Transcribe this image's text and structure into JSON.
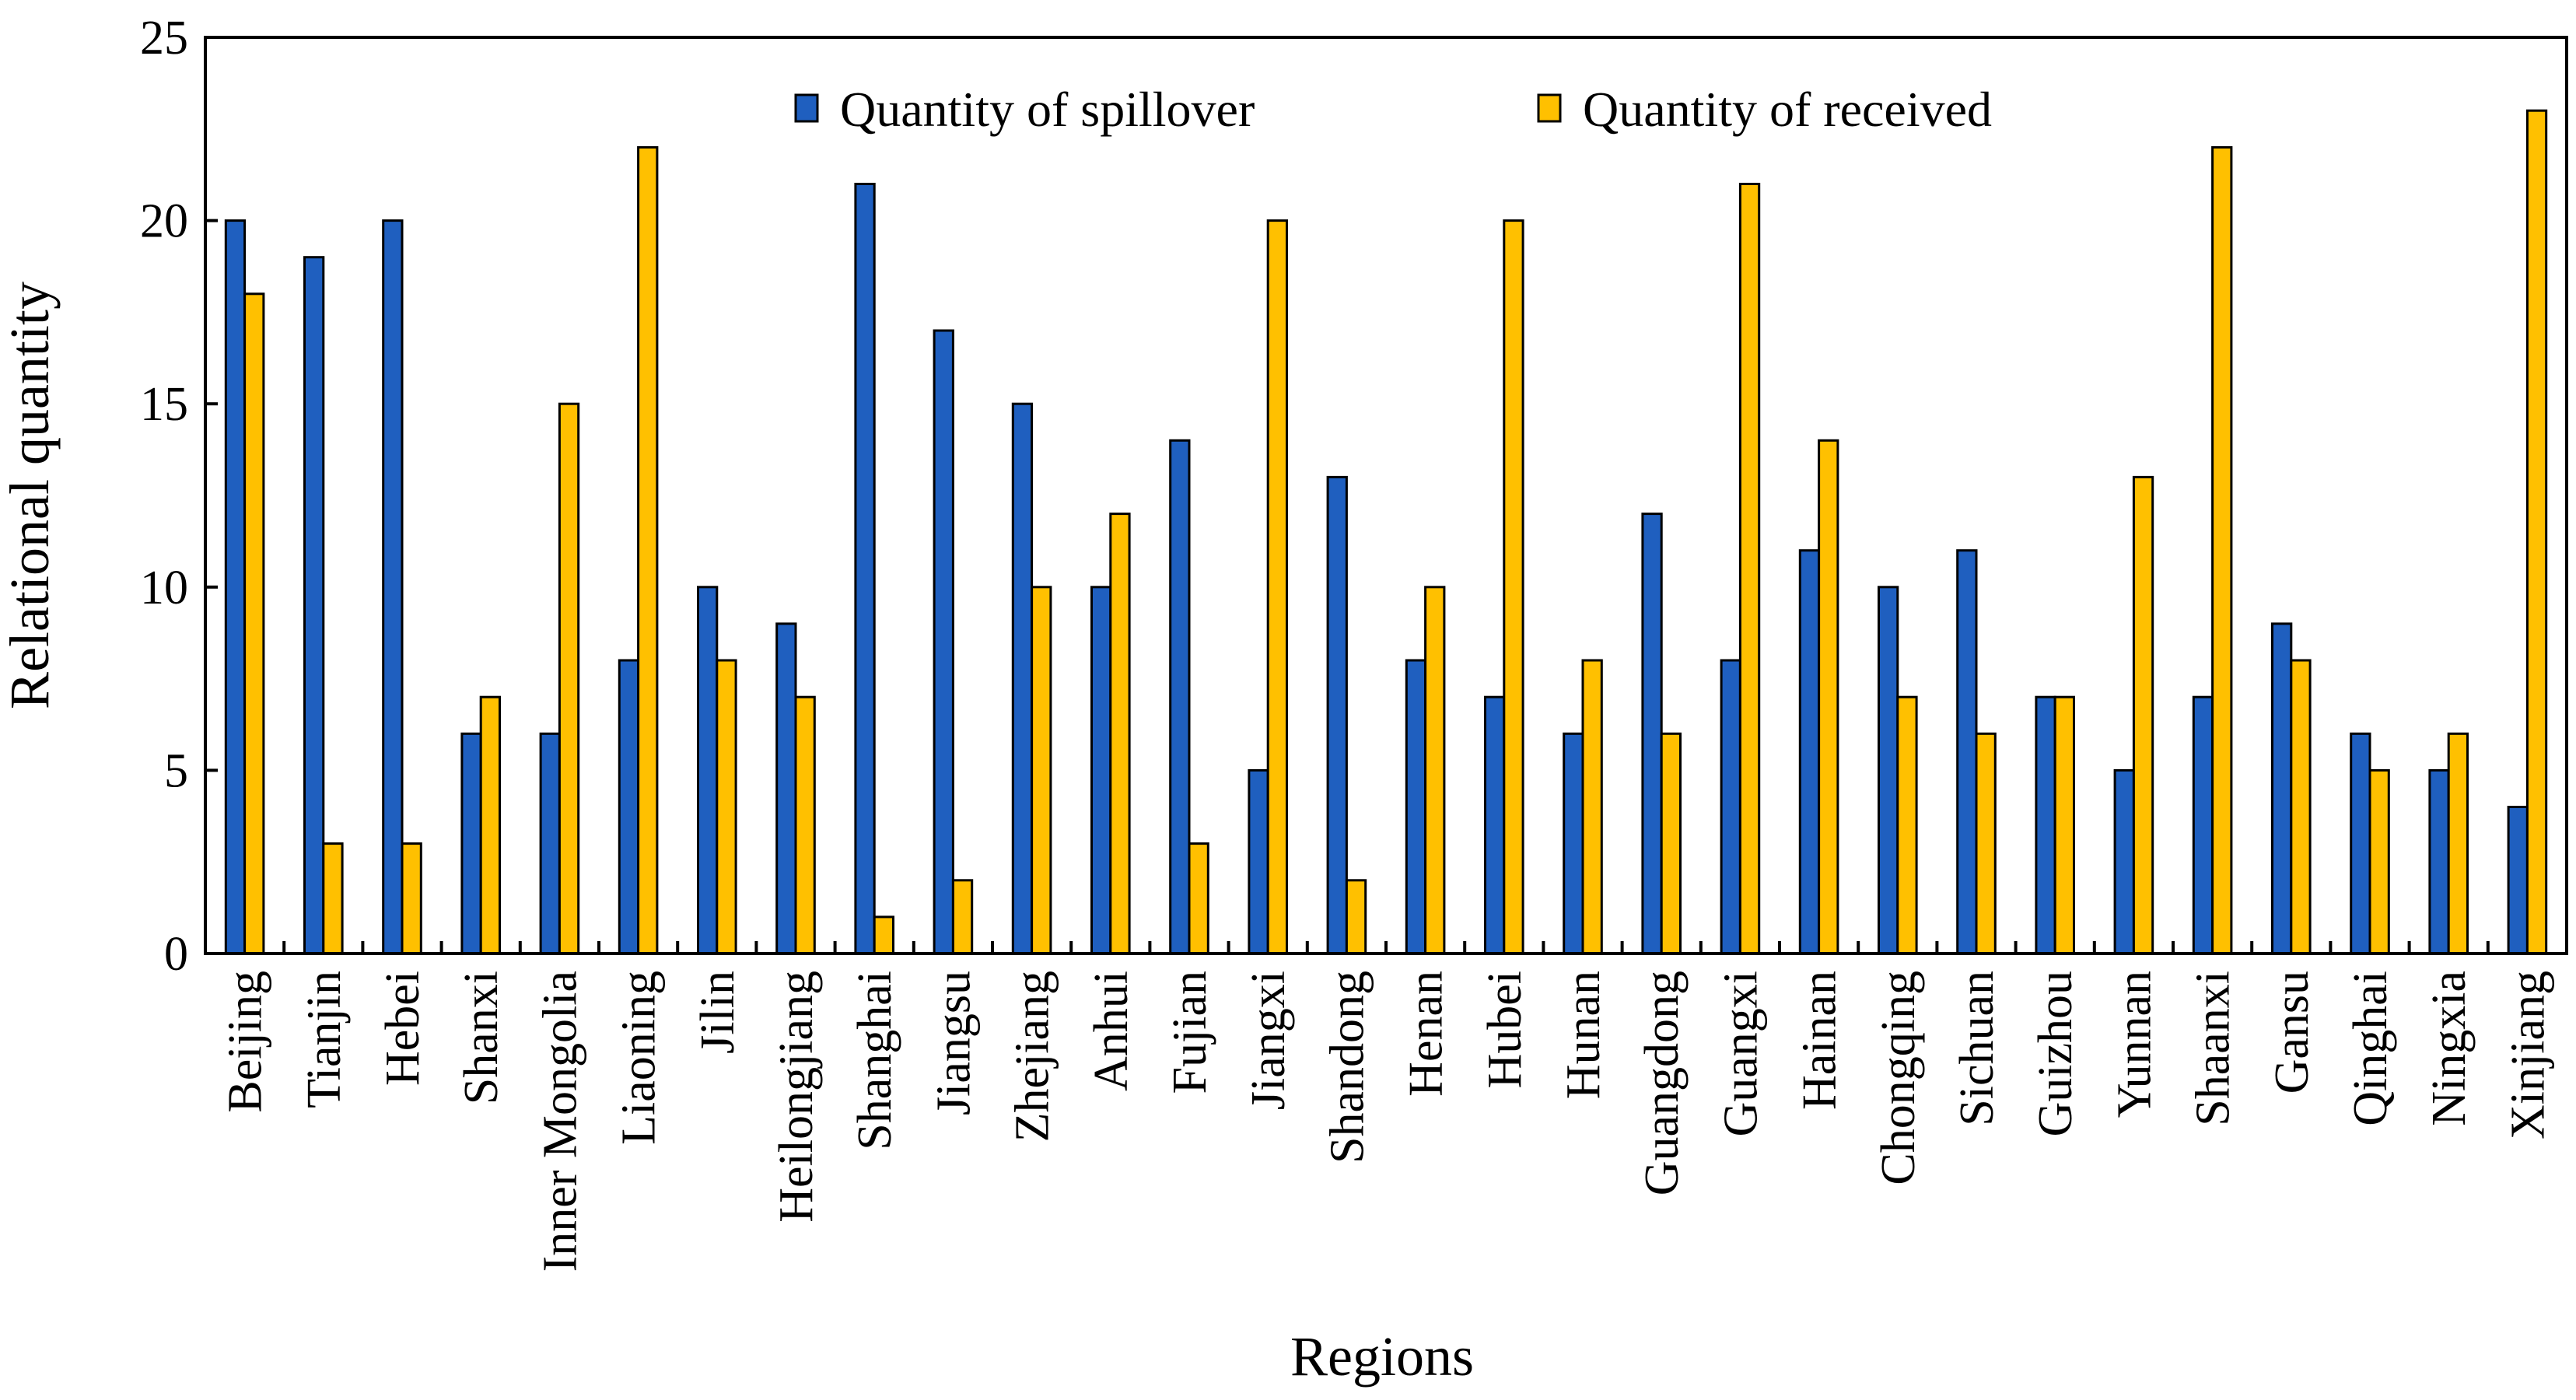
{
  "chart_data": {
    "type": "bar",
    "title": "",
    "xlabel": "Regions",
    "ylabel": "Relational quantity",
    "ylim": [
      0,
      25
    ],
    "yticks": [
      0,
      5,
      10,
      15,
      20,
      25
    ],
    "legend_position": "top-center",
    "categories": [
      "Beijing",
      "Tianjin",
      "Hebei",
      "Shanxi",
      "Inner Mongolia",
      "Liaoning",
      "Jilin",
      "Heilongjiang",
      "Shanghai",
      "Jiangsu",
      "Zhejiang",
      "Anhui",
      "Fujian",
      "Jiangxi",
      "Shandong",
      "Henan",
      "Hubei",
      "Hunan",
      "Guangdong",
      "Guangxi",
      "Hainan",
      "Chongqing",
      "Sichuan",
      "Guizhou",
      "Yunnan",
      "Shaanxi",
      "Gansu",
      "Qinghai",
      "Ningxia",
      "Xinjiang"
    ],
    "series": [
      {
        "name": "Quantity of spillover",
        "color": "#1f5fbf",
        "values": [
          20,
          19,
          20,
          6,
          6,
          8,
          10,
          9,
          21,
          17,
          15,
          10,
          14,
          5,
          13,
          8,
          7,
          6,
          12,
          8,
          11,
          10,
          11,
          7,
          5,
          7,
          9,
          6,
          5,
          4
        ]
      },
      {
        "name": "Quantity of received",
        "color": "#ffc000",
        "values": [
          18,
          3,
          3,
          7,
          15,
          22,
          8,
          7,
          1,
          2,
          10,
          12,
          3,
          20,
          2,
          10,
          20,
          8,
          6,
          21,
          14,
          7,
          6,
          7,
          13,
          22,
          8,
          5,
          6,
          23
        ]
      }
    ]
  }
}
